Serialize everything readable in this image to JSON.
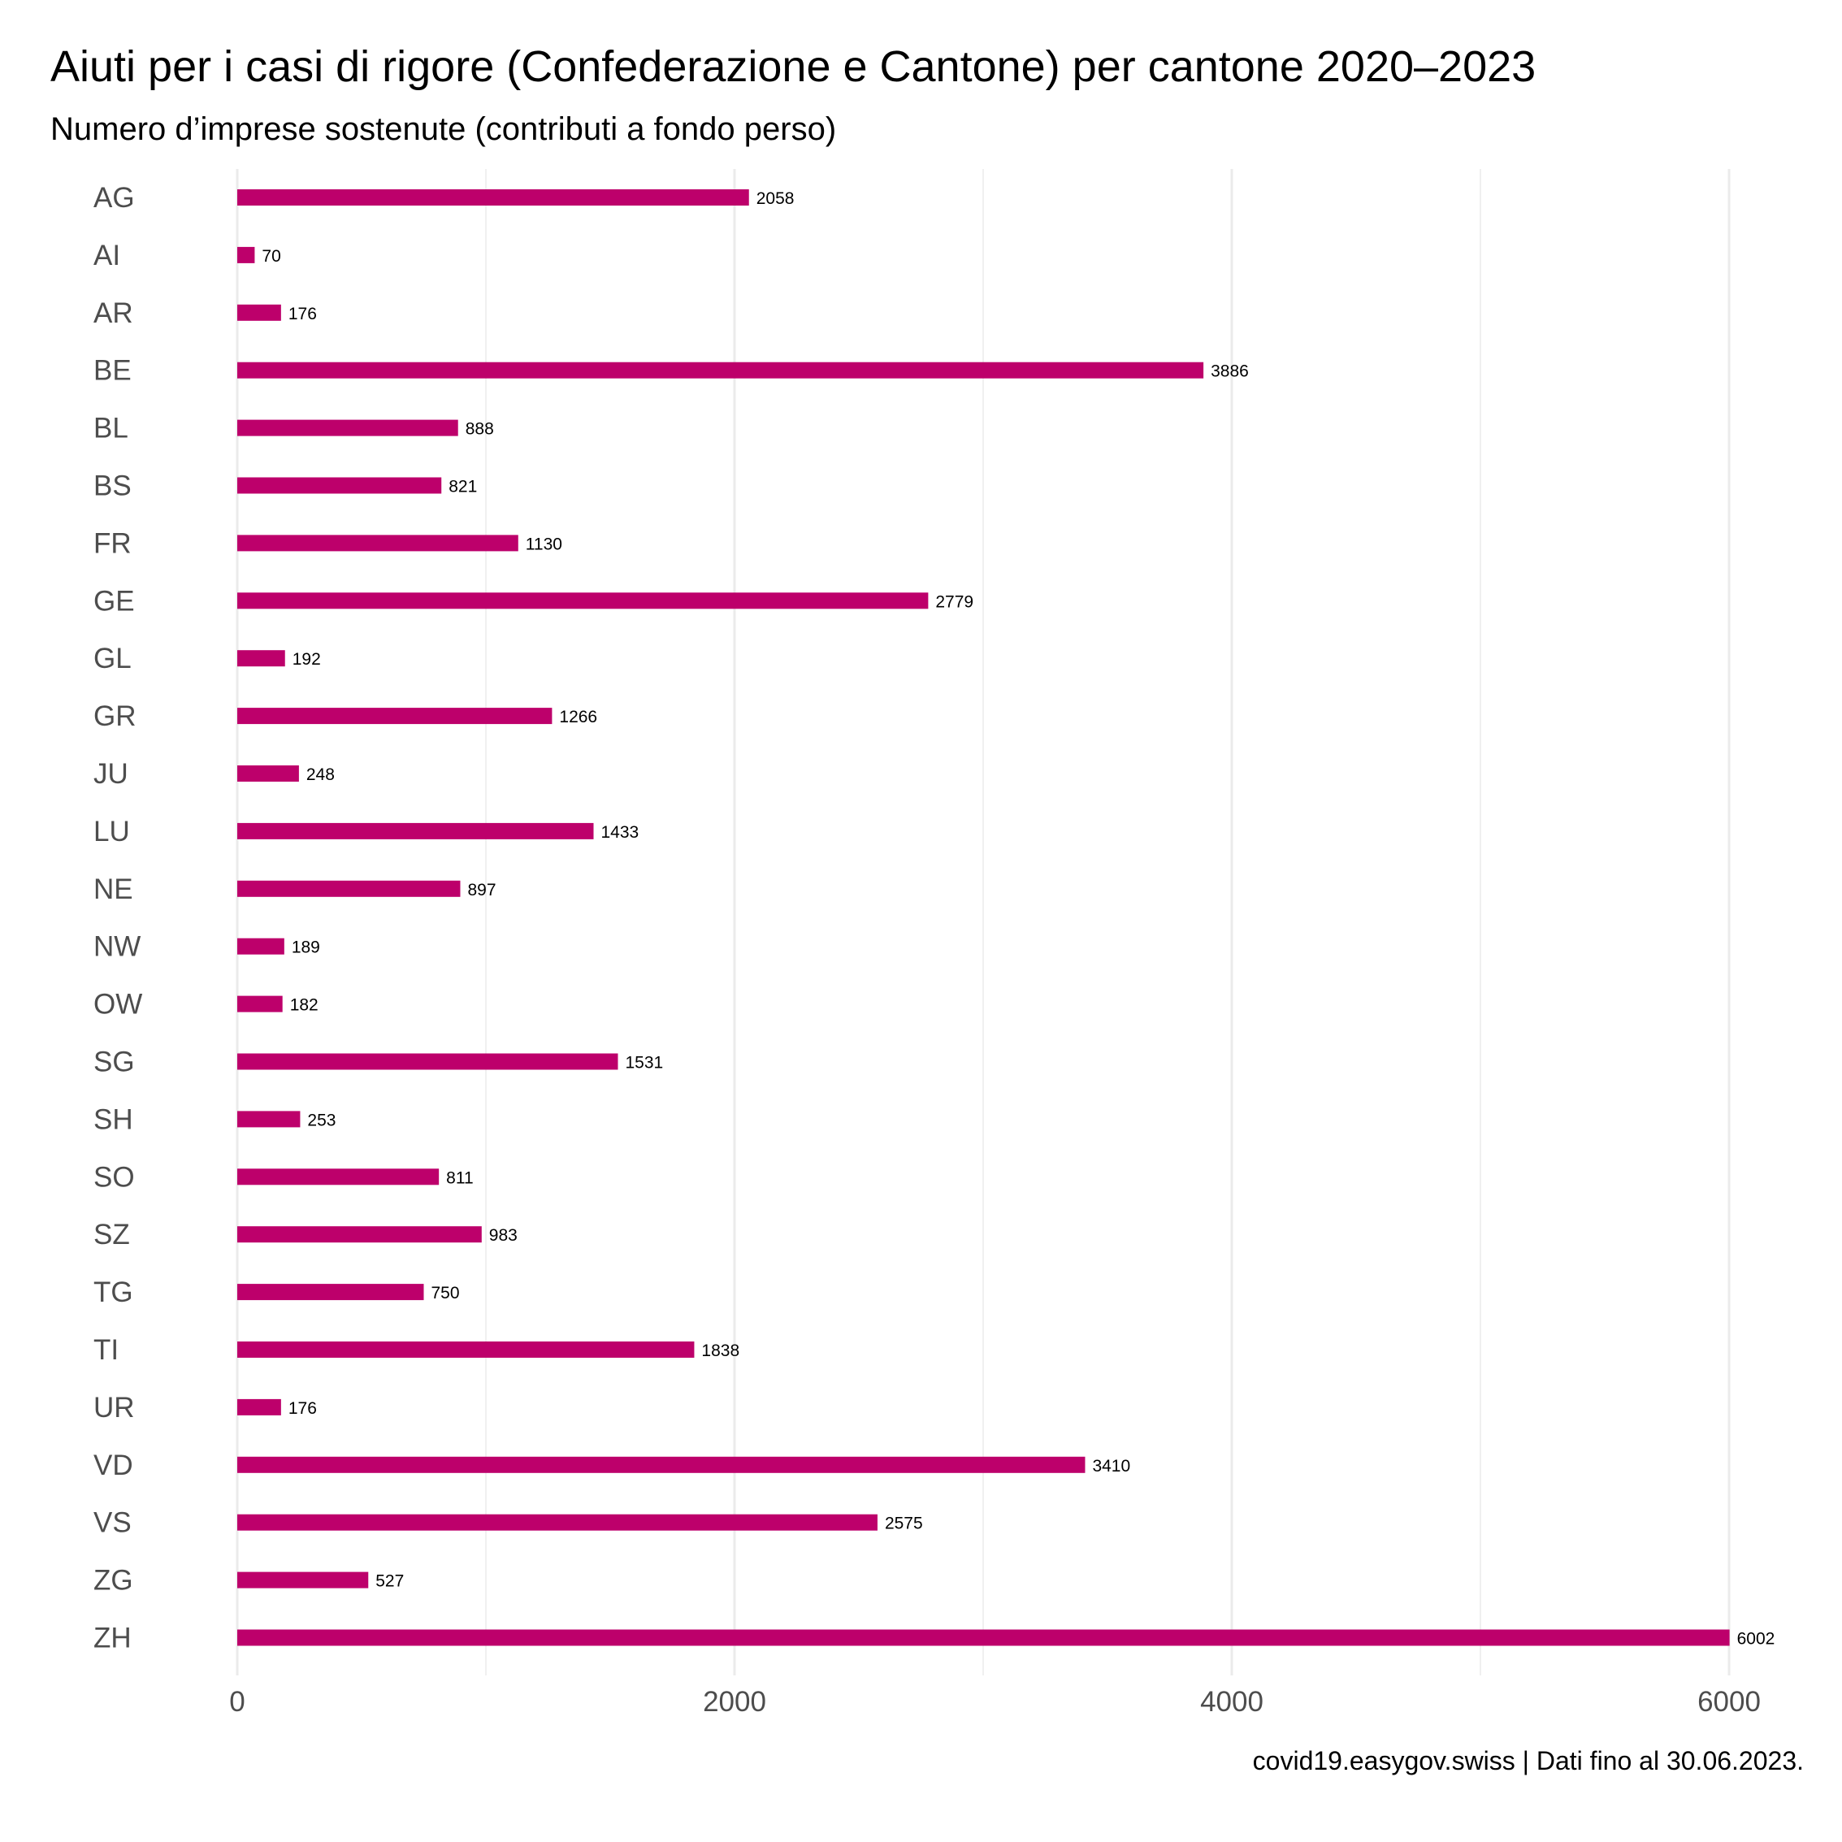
{
  "chart_data": {
    "type": "bar",
    "orientation": "horizontal",
    "title": "Aiuti per i casi di rigore (Confederazione e Cantone) per cantone 2020–2023",
    "subtitle": "Numero d’imprese sostenute (contributi a fondo perso)",
    "caption": "covid19.easygov.swiss | Dati fino al 30.06.2023.",
    "categories": [
      "AG",
      "AI",
      "AR",
      "BE",
      "BL",
      "BS",
      "FR",
      "GE",
      "GL",
      "GR",
      "JU",
      "LU",
      "NE",
      "NW",
      "OW",
      "SG",
      "SH",
      "SO",
      "SZ",
      "TG",
      "TI",
      "UR",
      "VD",
      "VS",
      "ZG",
      "ZH"
    ],
    "values": [
      2058,
      70,
      176,
      3886,
      888,
      821,
      1130,
      2779,
      192,
      1266,
      248,
      1433,
      897,
      189,
      182,
      1531,
      253,
      811,
      983,
      750,
      1838,
      176,
      3410,
      2575,
      527,
      6002
    ],
    "x_ticks": [
      0,
      2000,
      4000,
      6000
    ],
    "xlim": [
      0,
      6000
    ],
    "grid": "vertical",
    "bar_color": "#bd006b",
    "data_labels": true
  }
}
